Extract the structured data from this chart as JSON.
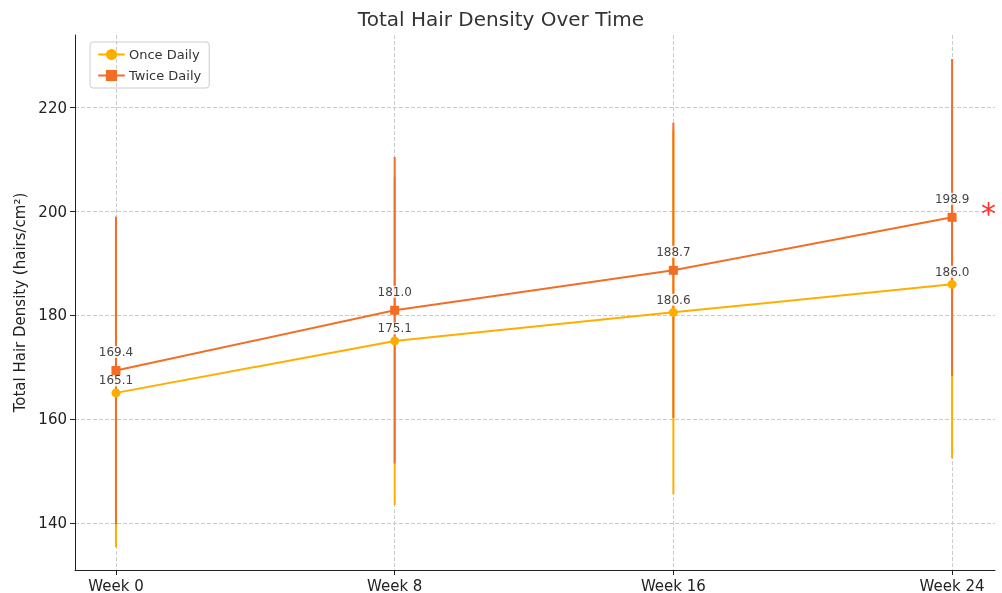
{
  "chart_data": {
    "type": "line",
    "title": "Total Hair Density Over Time",
    "ylabel": "Total Hair Density (hairs/cm²)",
    "categories": [
      "Week 0",
      "Week 8",
      "Week 16",
      "Week 24"
    ],
    "series": [
      {
        "name": "Once Daily",
        "color": "#ffae00",
        "marker": "circle",
        "values": [
          165.1,
          175.1,
          180.6,
          186.0
        ],
        "value_labels": [
          "165.1",
          "175.1",
          "180.6",
          "186.0"
        ],
        "errors": [
          [
            135.4,
            194.8
          ],
          [
            143.5,
            206.7
          ],
          [
            145.6,
            215.6
          ],
          [
            152.5,
            219.5
          ]
        ]
      },
      {
        "name": "Twice Daily",
        "color": "#f46d25",
        "marker": "square",
        "values": [
          169.4,
          181.0,
          188.7,
          198.9
        ],
        "value_labels": [
          "169.4",
          "181.0",
          "188.7",
          "198.9"
        ],
        "errors": [
          [
            139.8,
            199.0
          ],
          [
            151.5,
            210.5
          ],
          [
            160.3,
            217.1
          ],
          [
            168.4,
            229.4
          ]
        ]
      }
    ],
    "ylim": [
      131,
      234
    ],
    "yticks": [
      140,
      160,
      180,
      200,
      220
    ],
    "grid": true,
    "legend": "top left",
    "line_style": "solid",
    "annotations": [
      {
        "text": "*",
        "x": "Week 24",
        "y": 200.5
      }
    ]
  }
}
